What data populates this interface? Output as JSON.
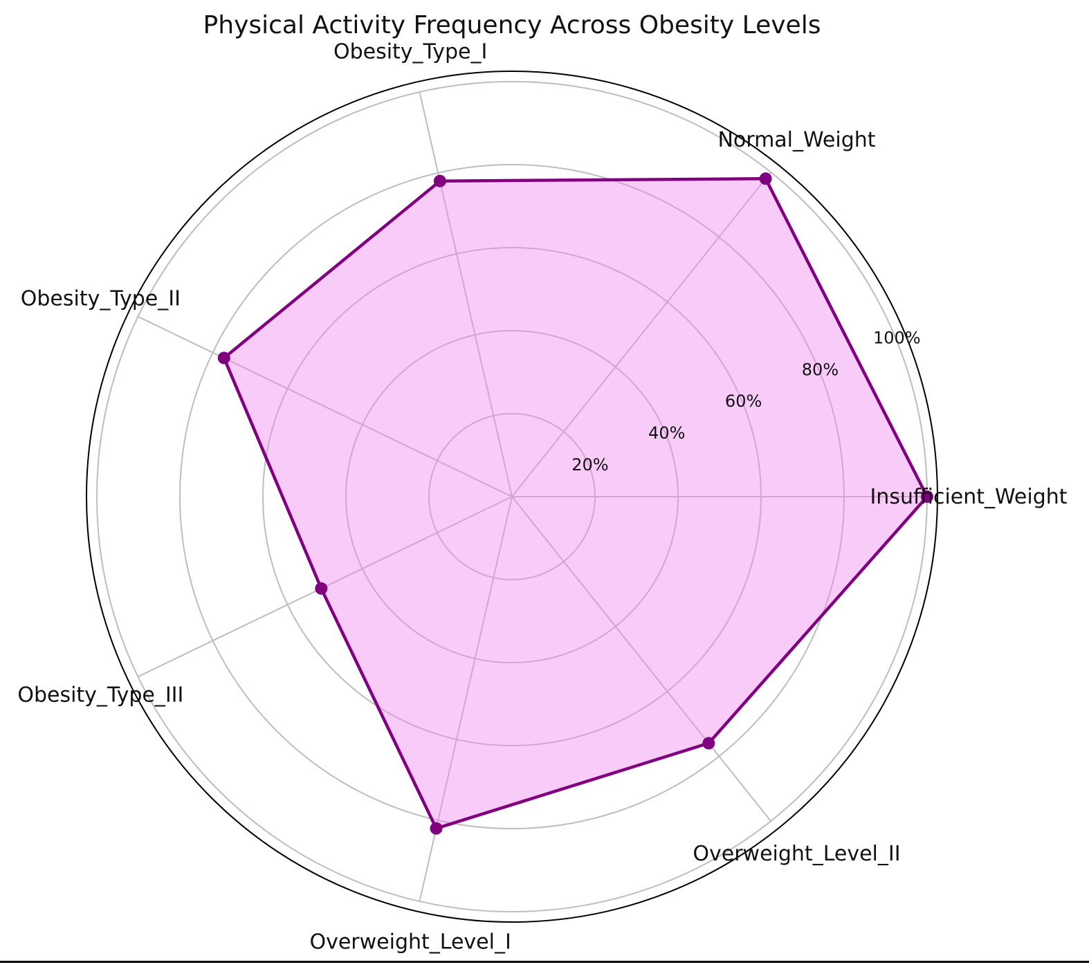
{
  "chart_data": {
    "type": "radar",
    "title": "Physical Activity Frequency Across Obesity Levels",
    "categories": [
      "Insufficient_Weight",
      "Normal_Weight",
      "Obesity_Type_I",
      "Obesity_Type_II",
      "Obesity_Type_III",
      "Overweight_Level_I",
      "Overweight_Level_II"
    ],
    "values": [
      100,
      98,
      78,
      77,
      51,
      82,
      76
    ],
    "rlim": [
      0,
      100
    ],
    "rticks": [
      20,
      40,
      60,
      80,
      100
    ],
    "rtick_labels": [
      "20%",
      "40%",
      "60%",
      "80%",
      "100%"
    ],
    "grid": true,
    "legend": "none",
    "colors": {
      "line": "#800080",
      "fill": "#ee82ee",
      "grid": "#bdbdbd",
      "frame": "#000000"
    }
  }
}
